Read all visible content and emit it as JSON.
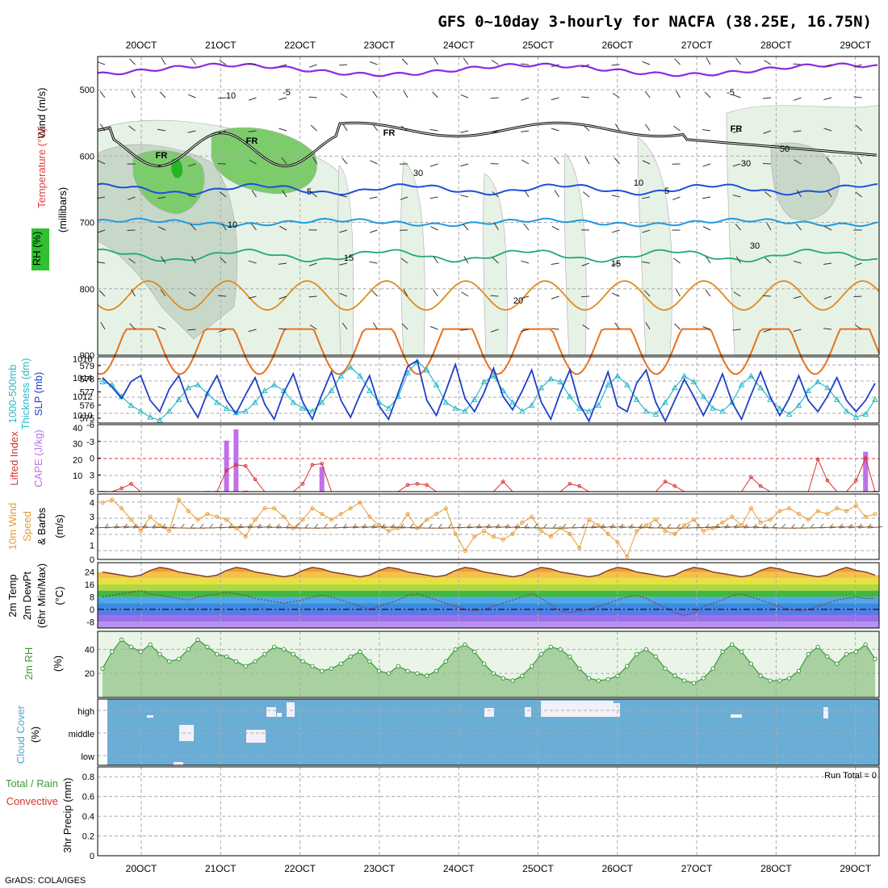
{
  "title": "GFS 0~10day 3-hourly for NACFA (38.25E, 16.75N)",
  "credit": "GrADS: COLA/IGES",
  "date_labels": [
    "20OCT",
    "21OCT",
    "22OCT",
    "23OCT",
    "24OCT",
    "25OCT",
    "26OCT",
    "27OCT",
    "28OCT",
    "29OCT"
  ],
  "colors": {
    "purple": "#8a2be2",
    "black": "#000000",
    "blue5": "#1f4fd8",
    "blue10": "#1e9be0",
    "green15": "#1fa878",
    "orange20": "#e08a1a",
    "slp": "#1f3fc8",
    "thick": "#2ab8c8",
    "li": "#d83030",
    "cape": "#c070e8",
    "wind": "#e89a30",
    "barb": "#7a5a3a",
    "dewpt": "#8a3a3a",
    "rh": "#3a9a3a",
    "cloud": "#6aaed6"
  },
  "chart_data": [
    {
      "id": "upper",
      "type": "contour",
      "ylabels": {
        "a": "Wind (m/s)",
        "b": "Temperature (°C)",
        "c": "(millibars)",
        "d": "RH (%)"
      },
      "ylim": [
        900,
        450
      ],
      "yticks": [
        "500",
        "600",
        "700",
        "800",
        "900"
      ],
      "contour_labels": [
        "-5",
        "-5",
        "5",
        "5",
        "10",
        "15",
        "15",
        "20",
        "FR",
        "FR",
        "FR",
        "FR",
        "10",
        "30",
        "30",
        "50",
        "10",
        "30"
      ]
    },
    {
      "id": "slp",
      "type": "line",
      "ylabels": {
        "a": "1000-500mb",
        "b": "Thickness (dm)",
        "c": "SLP (mb)"
      },
      "left_ticks": [
        "579",
        "578",
        "577",
        "576",
        "575"
      ],
      "right_ticks": [
        "1016",
        "1014",
        "1012",
        "1010"
      ],
      "thickness_range": [
        574.8,
        579.3
      ],
      "slp_range": [
        1009.2,
        1016.2
      ],
      "slp": [
        1014.0,
        1013.0,
        1011.8,
        1013.6,
        1014.2,
        1011.6,
        1010.4,
        1012.8,
        1014.2,
        1011.4,
        1009.8,
        1012.4,
        1014.2,
        1011.6,
        1010.2,
        1012.2,
        1014.0,
        1011.2,
        1009.6,
        1012.4,
        1014.4,
        1011.4,
        1009.6,
        1012.2,
        1014.6,
        1011.6,
        1009.8,
        1012.2,
        1014.2,
        1011.0,
        1009.6,
        1012.4,
        1015.2,
        1015.8,
        1011.6,
        1010.0,
        1012.6,
        1015.4,
        1011.8,
        1010.4,
        1012.4,
        1015.0,
        1012.0,
        1010.6,
        1012.6,
        1014.8,
        1011.4,
        1009.6,
        1012.4,
        1014.8,
        1011.2,
        1009.4,
        1012.0,
        1014.6,
        1011.0,
        1010.4,
        1013.4,
        1014.8,
        1011.4,
        1009.4,
        1011.6,
        1013.8,
        1012.0,
        1010.0,
        1012.0,
        1014.4,
        1011.4,
        1009.6,
        1012.2,
        1014.6,
        1012.0,
        1010.0,
        1011.8,
        1014.2,
        1011.6,
        1010.4,
        1012.0,
        1014.0,
        1011.6,
        1010.4,
        1011.6,
        1013.4
      ],
      "thickness": [
        577.6,
        577.4,
        576.6,
        576.0,
        575.6,
        575.2,
        575.0,
        575.6,
        576.4,
        577.2,
        577.4,
        576.8,
        576.2,
        575.8,
        575.5,
        575.6,
        576.2,
        577.0,
        577.4,
        577.0,
        576.2,
        575.8,
        575.6,
        576.2,
        577.0,
        578.0,
        578.6,
        578.0,
        577.0,
        576.2,
        575.8,
        576.6,
        578.2,
        579.0,
        578.4,
        577.4,
        576.2,
        575.8,
        575.6,
        576.4,
        577.6,
        578.0,
        577.0,
        576.2,
        575.6,
        576.0,
        577.2,
        577.8,
        577.6,
        576.6,
        575.8,
        575.6,
        576.0,
        577.4,
        578.0,
        577.4,
        576.4,
        575.6,
        575.4,
        576.2,
        577.2,
        578.0,
        577.6,
        576.6,
        575.8,
        575.6,
        576.2,
        577.4,
        578.0,
        577.2,
        576.4,
        575.8,
        575.4,
        576.0,
        577.0,
        577.6,
        577.2,
        576.4,
        575.6,
        575.2,
        575.4,
        576.4
      ]
    },
    {
      "id": "cape_li",
      "type": "bar+line",
      "ylabels": {
        "a": "Lifted Index",
        "b": "CAPE (J/kg)"
      },
      "left_ticks": [
        "-6",
        "-3",
        "0",
        "3",
        "6"
      ],
      "right_ticks": [
        "40",
        "30",
        "20",
        "10"
      ],
      "cape_range": [
        0,
        42
      ],
      "li_range": [
        6,
        -6
      ],
      "cape": [
        0.5,
        0,
        0,
        0,
        0,
        0,
        0,
        0,
        0,
        0,
        0,
        0.4,
        0.5,
        32,
        39,
        0.6,
        0,
        0,
        0,
        0,
        0,
        0,
        0,
        15.6,
        0,
        0,
        0,
        0,
        0,
        0,
        0,
        0,
        0,
        0,
        0,
        0,
        0,
        0,
        0,
        0,
        0,
        0,
        0,
        0,
        0,
        0,
        0,
        0,
        0,
        0,
        0,
        0,
        0,
        0,
        0,
        0,
        0,
        0,
        0,
        0,
        0,
        0,
        0,
        0,
        0,
        0,
        0,
        0,
        0,
        0,
        0,
        0,
        0,
        0,
        0,
        0,
        0,
        0,
        0,
        0,
        25,
        0.5
      ],
      "li": [
        6,
        6,
        5.4,
        4.6,
        6,
        6,
        6,
        6,
        6,
        6,
        6,
        6,
        6,
        2.2,
        1.2,
        1.4,
        3.8,
        6,
        6,
        6,
        6,
        4.6,
        1.2,
        1.0,
        6,
        6,
        6,
        6,
        6,
        6,
        6,
        6,
        4.8,
        4.6,
        4.8,
        6,
        6,
        6,
        6,
        6,
        6,
        6,
        4.2,
        6,
        6,
        6,
        6,
        6,
        6,
        4.6,
        5,
        6,
        6,
        6,
        6,
        6,
        6,
        6,
        6,
        4.2,
        5,
        6,
        6,
        6,
        6,
        6,
        6,
        6,
        3.4,
        5,
        6,
        6,
        6,
        6,
        6,
        0.2,
        4,
        6,
        6,
        4,
        0,
        6
      ]
    },
    {
      "id": "wind10m",
      "type": "line+barbs",
      "ylabels": {
        "a": "10m Wind",
        "b": "Speed",
        "c": "& Barbs",
        "d": "(m/s)"
      },
      "ticks": [
        "4",
        "3",
        "2",
        "1",
        "0"
      ],
      "ylim": [
        0,
        4.6
      ],
      "speed": [
        4.0,
        4.2,
        3.6,
        2.8,
        2.0,
        3.0,
        2.4,
        2.0,
        4.2,
        3.4,
        2.8,
        3.2,
        3.0,
        2.8,
        2.2,
        1.6,
        2.8,
        3.6,
        3.6,
        3.0,
        2.2,
        2.8,
        3.6,
        3.2,
        2.8,
        3.2,
        3.6,
        4.0,
        3.0,
        2.4,
        2.0,
        2.2,
        3.2,
        2.2,
        2.8,
        3.2,
        3.6,
        1.8,
        0.6,
        1.6,
        2.0,
        1.6,
        1.4,
        1.8,
        2.6,
        3.0,
        2.0,
        1.6,
        2.2,
        1.8,
        0.8,
        2.8,
        2.4,
        1.8,
        1.2,
        0.2,
        2.0,
        2.4,
        2.8,
        2.0,
        1.8,
        2.4,
        2.8,
        2.0,
        2.2,
        2.6,
        3.0,
        2.4,
        3.6,
        2.6,
        2.8,
        3.4,
        3.6,
        3.2,
        2.8,
        3.4,
        3.2,
        3.6,
        3.4,
        3.8,
        3.0,
        3.2
      ]
    },
    {
      "id": "temp2m",
      "type": "line+fill",
      "ylabels": {
        "a": "2m Temp",
        "b": "2m DewPt",
        "c": "(6hr Min/Max)",
        "d": "(°C)"
      },
      "ticks": [
        "24",
        "16",
        "8",
        "0",
        "-8"
      ],
      "ylim": [
        -12,
        30
      ],
      "temp": [
        24,
        23,
        22,
        21,
        22,
        25,
        27,
        26,
        24,
        23,
        22,
        21,
        22,
        25,
        27,
        26,
        24,
        23,
        22,
        21,
        22,
        25,
        27,
        26,
        24,
        23,
        22,
        21,
        22,
        25,
        27,
        26,
        24,
        23,
        22,
        21,
        22,
        25,
        27,
        26,
        24,
        23,
        22,
        21,
        22,
        25,
        27,
        26,
        24,
        23,
        22,
        21,
        22,
        25,
        27,
        26,
        24,
        23,
        22,
        21,
        22,
        25,
        27,
        26,
        24,
        23,
        22,
        21,
        22,
        25,
        27,
        26,
        24,
        23,
        22,
        21,
        22,
        25,
        27,
        25,
        24,
        22
      ],
      "dewpt": [
        8,
        9,
        10,
        11,
        12,
        10,
        9,
        8,
        7,
        6,
        8,
        9,
        10,
        11,
        10,
        9,
        7,
        6,
        5,
        4,
        5,
        6,
        8,
        9,
        8,
        6,
        4,
        2,
        0,
        2,
        4,
        6,
        9,
        10,
        8,
        6,
        4,
        2,
        0,
        -1,
        0,
        2,
        4,
        6,
        8,
        10,
        7,
        3,
        -1,
        -2,
        -1,
        0,
        2,
        4,
        6,
        8,
        9,
        7,
        4,
        1,
        -2,
        -4,
        -2,
        2,
        4,
        6,
        9,
        10,
        8,
        6,
        4,
        2,
        0,
        -1,
        0,
        2,
        4,
        6,
        7,
        8,
        7,
        7
      ]
    },
    {
      "id": "rh2m",
      "type": "area",
      "ylabels": {
        "a": "2m RH",
        "b": "(%)"
      },
      "ticks": [
        "40",
        "20"
      ],
      "ylim": [
        0,
        55
      ],
      "rh": [
        24,
        38,
        48,
        42,
        38,
        44,
        36,
        30,
        32,
        40,
        48,
        42,
        36,
        34,
        30,
        26,
        30,
        36,
        42,
        40,
        36,
        30,
        26,
        22,
        24,
        28,
        34,
        38,
        30,
        22,
        20,
        26,
        22,
        20,
        18,
        22,
        30,
        40,
        44,
        38,
        28,
        20,
        16,
        14,
        18,
        26,
        36,
        42,
        40,
        34,
        24,
        16,
        14,
        15,
        18,
        26,
        36,
        40,
        34,
        24,
        18,
        14,
        12,
        16,
        24,
        38,
        44,
        38,
        28,
        18,
        14,
        14,
        16,
        22,
        36,
        42,
        34,
        28,
        36,
        38,
        44,
        32
      ]
    },
    {
      "id": "cloud",
      "type": "step",
      "ylabels": {
        "a": "Cloud Cover",
        "b": "(%)"
      },
      "levels": [
        "high",
        "middle",
        "low"
      ],
      "high": [
        0,
        0,
        0,
        0,
        0,
        0,
        0,
        0,
        0,
        0,
        0,
        0,
        0,
        0,
        0,
        0,
        0,
        0,
        0,
        0,
        0,
        0,
        0,
        0,
        0,
        0,
        0,
        0,
        0,
        0,
        0,
        0,
        0,
        0,
        0,
        0,
        0,
        0,
        0,
        0,
        0,
        0,
        0,
        0,
        0,
        0,
        0,
        0,
        0,
        0,
        0,
        0,
        0,
        0,
        0,
        0,
        0,
        0,
        0,
        0,
        0,
        0,
        0,
        0,
        0,
        0,
        0,
        0,
        0,
        0,
        0,
        0,
        0,
        0,
        0,
        0,
        0,
        0,
        0,
        0,
        0,
        0
      ]
    },
    {
      "id": "precip",
      "type": "bar",
      "ylabels": {
        "a": "Total / Rain",
        "b": "Convective",
        "c": "3hr Precip (mm)"
      },
      "ticks": [
        "0.8",
        "0.6",
        "0.4",
        "0.2",
        "0"
      ],
      "ylim": [
        0,
        0.9
      ],
      "run_total": "Run Total = 0"
    }
  ]
}
